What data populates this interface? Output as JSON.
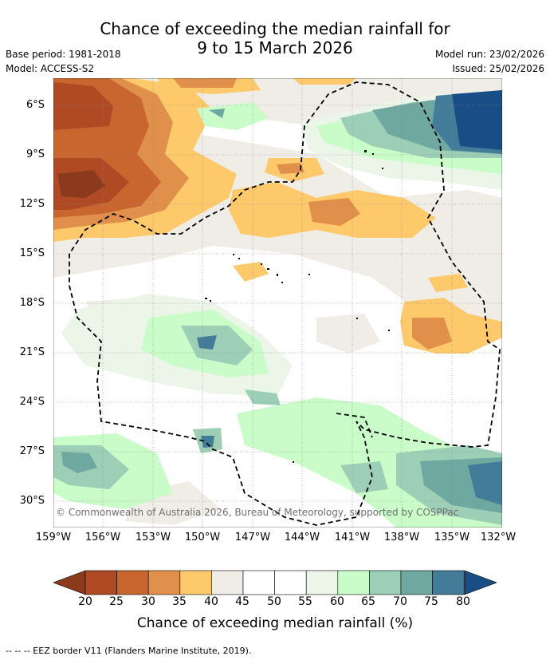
{
  "title_line1": "Chance of exceeding the median rainfall for",
  "title_line2": "9 to 15 March 2026",
  "base_period": "Base period: 1981-2018",
  "model": "Model: ACCESS-S2",
  "model_run": "Model run: 23/02/2026",
  "issued": "Issued: 25/02/2026",
  "copyright": "© Commonwealth of Australia 2026, Bureau of Meteorology, supported by COSPPac",
  "lat_labels": [
    "6°S",
    "9°S",
    "12°S",
    "15°S",
    "18°S",
    "21°S",
    "24°S",
    "27°S",
    "30°S"
  ],
  "lon_labels": [
    "159°W",
    "156°W",
    "153°W",
    "150°W",
    "147°W",
    "144°W",
    "141°W",
    "138°W",
    "135°W",
    "132°W"
  ],
  "colorbar": {
    "ticks": [
      "20",
      "25",
      "30",
      "35",
      "40",
      "45",
      "50",
      "55",
      "60",
      "65",
      "70",
      "75",
      "80"
    ],
    "colors": [
      "#8b3a1e",
      "#b04a25",
      "#c9652f",
      "#e0904a",
      "#fdc96b",
      "#efede6",
      "#ffffff",
      "#ffffff",
      "#ebf5e8",
      "#c9fcc9",
      "#9ccfb6",
      "#6ea8a0",
      "#437c98",
      "#184d85"
    ],
    "title": "Chance of exceeding median rainfall (%)"
  },
  "footer": "--  --  -- EEZ border V11 (Flanders Marine Institute, 2019)."
}
